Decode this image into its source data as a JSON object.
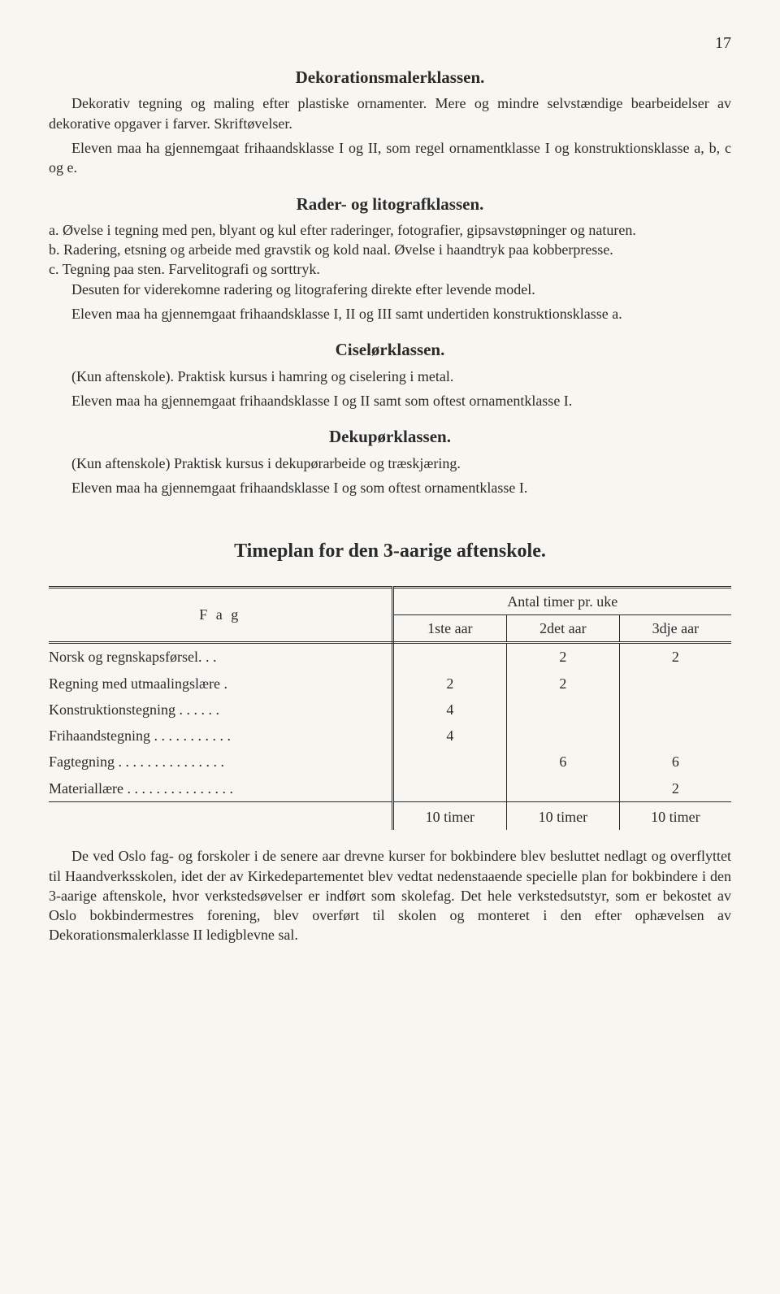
{
  "pageNumber": "17",
  "sections": [
    {
      "title": "Dekorationsmalerklassen.",
      "paras": [
        "Dekorativ tegning og maling efter plastiske ornamenter. Mere og mindre selvstændige bearbeidelser av dekorative opgaver i farver. Skriftøvelser.",
        "Eleven maa ha gjennemgaat frihaandsklasse I og II, som regel ornamentklasse I og konstruktionsklasse a, b, c og e."
      ]
    },
    {
      "title": "Rader- og litografklassen.",
      "items": [
        "a. Øvelse i tegning med pen, blyant og kul efter raderinger, fotografier, gipsavstøpninger og naturen.",
        "b. Radering, etsning og arbeide med gravstik og kold naal. Øvelse i haandtryk paa kobberpresse.",
        "c. Tegning paa sten. Farvelitografi og sorttryk."
      ],
      "paras": [
        "Desuten for viderekomne radering og litografering direkte efter levende model.",
        "Eleven maa ha gjennemgaat frihaandsklasse I, II og III samt undertiden konstruktionsklasse a."
      ]
    },
    {
      "title": "Ciselørklassen.",
      "paras": [
        "(Kun aftenskole). Praktisk kursus i hamring og ciselering i metal.",
        "Eleven maa ha gjennemgaat frihaandsklasse I og II samt som oftest ornamentklasse I."
      ]
    },
    {
      "title": "Dekupørklassen.",
      "paras": [
        "(Kun aftenskole)  Praktisk kursus i dekupørarbeide og træskjæring.",
        "Eleven maa ha gjennemgaat frihaandsklasse I og som oftest ornamentklasse I."
      ]
    }
  ],
  "tableTitle": "Timeplan for den 3-aarige aftenskole.",
  "table": {
    "fagHeader": "F a g",
    "antalHeader": "Antal timer pr. uke",
    "yearHeaders": [
      "1ste aar",
      "2det aar",
      "3dje aar"
    ],
    "rows": [
      {
        "label": "Norsk og regnskapsførsel. . .",
        "cells": [
          "",
          "2",
          "2"
        ]
      },
      {
        "label": "Regning med utmaalingslære .",
        "cells": [
          "2",
          "2",
          ""
        ]
      },
      {
        "label": "Konstruktionstegning . .  . . . .",
        "cells": [
          "4",
          "",
          ""
        ]
      },
      {
        "label": "Frihaandstegning . . . . . . . . . . .",
        "cells": [
          "4",
          "",
          ""
        ]
      },
      {
        "label": "Fagtegning . . . . . . . . .  . . . . . .",
        "cells": [
          "",
          "6",
          "6"
        ]
      },
      {
        "label": "Materiallære . . . . . . . . . . . . . . .",
        "cells": [
          "",
          "",
          "2"
        ]
      }
    ],
    "totals": [
      "10 timer",
      "10 timer",
      "10 timer"
    ]
  },
  "footerPara": "De ved Oslo fag- og forskoler i de senere aar drevne kurser for bokbindere blev besluttet nedlagt og overflyttet til Haandverksskolen, idet der av Kirkedepartementet blev vedtat nedenstaaende specielle plan for bokbindere i den 3-aarige aftenskole, hvor verkstedsøvelser er indført som skolefag. Det hele verkstedsutstyr, som er bekostet av Oslo bokbindermestres forening, blev overført til skolen og monteret i den efter ophævelsen av Dekorationsmalerklasse II ledigblevne sal."
}
